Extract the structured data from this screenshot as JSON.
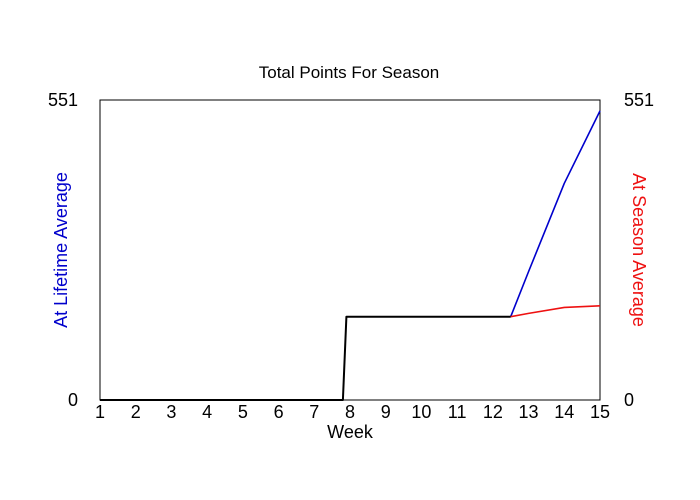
{
  "chart_data": {
    "type": "line",
    "title": "Total Points For Season",
    "xlabel": "Week",
    "ylabel_left": "At Lifetime Average",
    "ylabel_right": "At Season Average",
    "xlim": [
      1,
      15
    ],
    "ylim": [
      0,
      551
    ],
    "x_ticks": [
      "1",
      "2",
      "3",
      "4",
      "5",
      "6",
      "7",
      "8",
      "9",
      "10",
      "11",
      "12",
      "13",
      "14",
      "15"
    ],
    "y_ticks_left": [
      "0",
      "551"
    ],
    "y_ticks_right": [
      "0",
      "551"
    ],
    "grid": false,
    "series": [
      {
        "role": "actual",
        "color": "#000000",
        "points": [
          [
            1,
            0
          ],
          [
            7.8,
            0
          ],
          [
            7.9,
            153
          ],
          [
            12.5,
            153
          ]
        ]
      },
      {
        "role": "lifetime-average-projection",
        "color": "#0000cc",
        "points": [
          [
            12.5,
            153
          ],
          [
            13,
            236
          ],
          [
            14,
            398
          ],
          [
            15,
            531
          ]
        ]
      },
      {
        "role": "season-average-projection",
        "color": "#ee1111",
        "points": [
          [
            12.5,
            153
          ],
          [
            13,
            159
          ],
          [
            14,
            170
          ],
          [
            15,
            173
          ]
        ]
      }
    ],
    "colors": {
      "left_axis_label": "#0000cc",
      "right_axis_label": "#ee1111",
      "axes": "#000000"
    }
  }
}
